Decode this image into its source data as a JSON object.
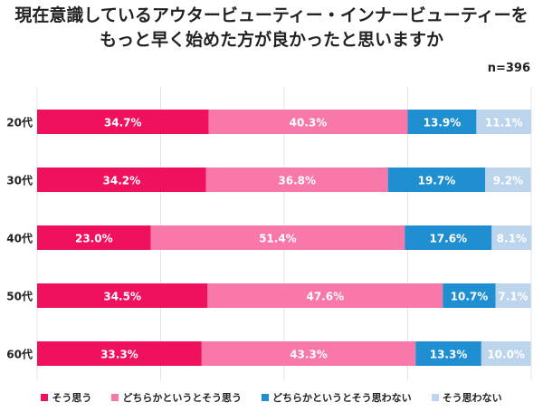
{
  "title_lines": [
    "現在意識しているアウタービューティー・インナービューティーを",
    "もっと早く始めた方が良かったと思いますか"
  ],
  "sample": "n=396",
  "chart_data": {
    "type": "bar",
    "orientation": "horizontal-stacked-100",
    "title": "現在意識しているアウタービューティー・インナービューティーをもっと早く始めた方が良かったと思いますか",
    "categories": [
      "20代",
      "30代",
      "40代",
      "50代",
      "60代"
    ],
    "series": [
      {
        "name": "そう思う",
        "color": "#f0115e",
        "values": [
          34.7,
          34.2,
          23.0,
          34.5,
          33.3
        ]
      },
      {
        "name": "どちらかというとそう思う",
        "color": "#f878aa",
        "values": [
          40.3,
          36.8,
          51.4,
          47.6,
          43.3
        ]
      },
      {
        "name": "どちらかというとそう思わない",
        "color": "#1f8fd1",
        "values": [
          13.9,
          19.7,
          17.6,
          10.7,
          13.3
        ]
      },
      {
        "name": "そう思わない",
        "color": "#bcd4ec",
        "values": [
          11.1,
          9.2,
          8.1,
          7.1,
          10.0
        ]
      }
    ],
    "xlim": [
      0,
      100
    ],
    "grid": true,
    "legend": "bottom",
    "label_format": "%"
  }
}
